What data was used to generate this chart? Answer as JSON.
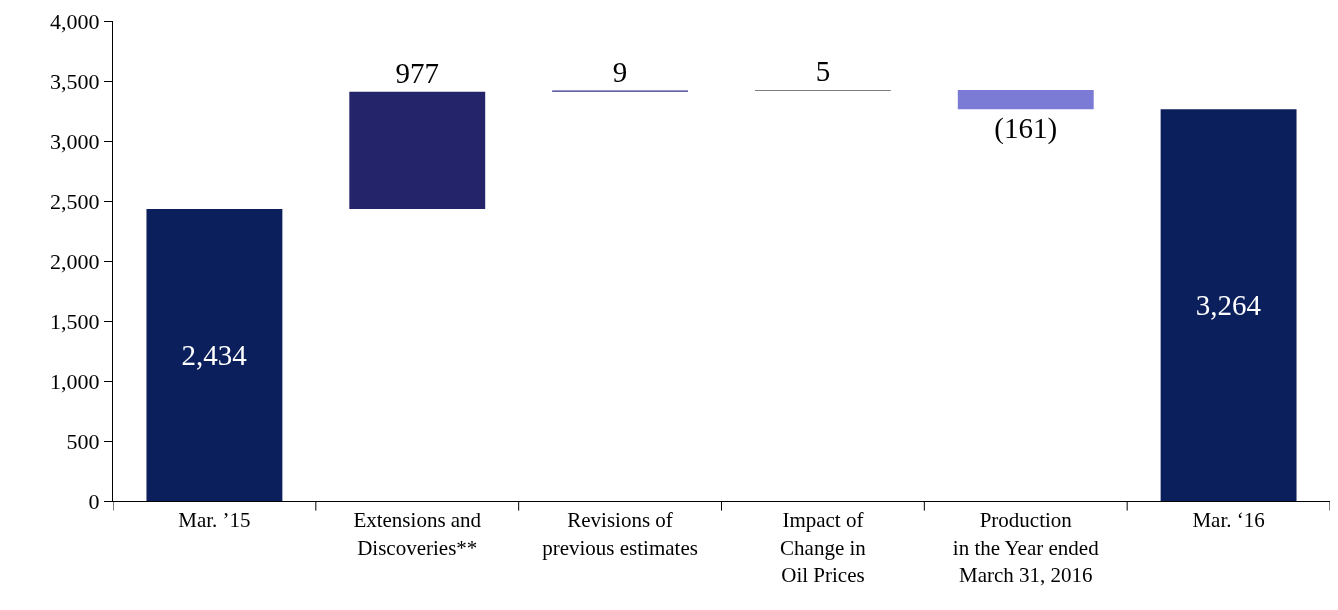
{
  "chart_data": {
    "type": "bar",
    "categories": [
      "Mar. ’15",
      "Extensions and\nDiscoveries**",
      "Revisions of\nprevious estimates",
      "Impact of\nChange in\nOil Prices",
      "Production\nin the Year ended\nMarch 31, 2016",
      "Mar. ‘16"
    ],
    "values": [
      2434,
      977,
      9,
      5,
      -161,
      3264
    ],
    "base": [
      0,
      2434,
      3411,
      3420,
      3425,
      0
    ],
    "colors": [
      "#0b1f5c",
      "#24246a",
      "#2e2e8a",
      "#000000",
      "#7b7bd6",
      "#0b1f5c"
    ],
    "value_labels": [
      "2,434",
      "977",
      "9",
      "5",
      "(161)",
      "3,264"
    ],
    "ylim": [
      0,
      4000
    ],
    "yticks": [
      {
        "value": 0,
        "label": "0"
      },
      {
        "value": 500,
        "label": "500"
      },
      {
        "value": 1000,
        "label": "1,000"
      },
      {
        "value": 1500,
        "label": "1,500"
      },
      {
        "value": 2000,
        "label": "2,000"
      },
      {
        "value": 2500,
        "label": "2,500"
      },
      {
        "value": 3000,
        "label": "3,000"
      },
      {
        "value": 3500,
        "label": "3,500"
      },
      {
        "value": 4000,
        "label": "4,000"
      }
    ],
    "grid": false
  }
}
